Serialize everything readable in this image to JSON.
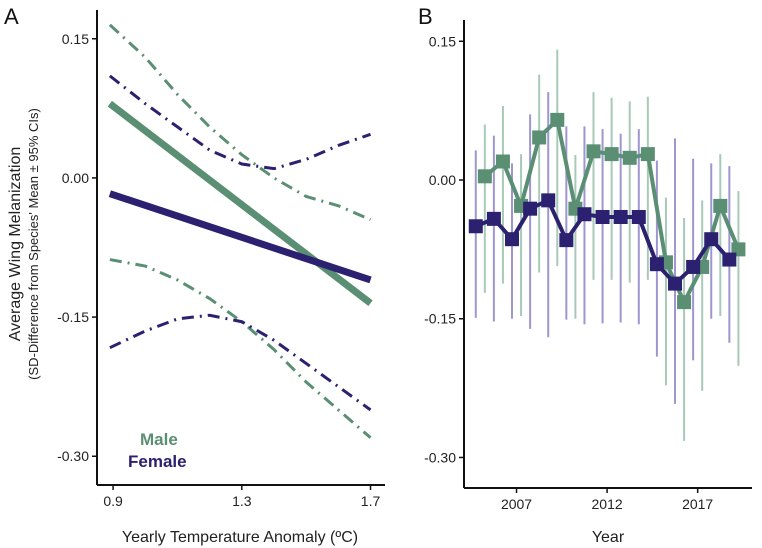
{
  "colors": {
    "male": "#5b8f74",
    "female": "#2b2170",
    "male_ci": "#a9c9b8",
    "female_ci": "#9d96cf"
  },
  "chart_data": [
    {
      "type": "line",
      "panel_label": "A",
      "ylabel": "Average Wing Melanization",
      "ylabel_sub": "(SD-Difference from Species' Mean ± 95% CIs)",
      "xlabel": "Yearly Temperature Anomaly (ºC)",
      "xlim": [
        0.85,
        1.745
      ],
      "ylim": [
        -0.331,
        0.181
      ],
      "xticks": [
        0.9,
        1.3,
        1.7
      ],
      "xtick_labels": [
        "0.9",
        "1.3",
        "1.7"
      ],
      "yticks": [
        0.15,
        0,
        -0.15,
        -0.3
      ],
      "ytick_labels": [
        "0.15",
        "0.00",
        "-0.15",
        "-0.30"
      ],
      "legend": {
        "placement": "bottom-left",
        "entries": [
          "Male",
          "Female"
        ]
      },
      "series": [
        {
          "name": "Male",
          "fit": {
            "x": [
              0.89,
              1.7
            ],
            "y": [
              0.08,
              -0.135
            ]
          },
          "ci_x": [
            0.89,
            1.0,
            1.1,
            1.2,
            1.3,
            1.4,
            1.5,
            1.6,
            1.7
          ],
          "ci_upper": [
            0.165,
            0.13,
            0.09,
            0.055,
            0.025,
            0.0,
            -0.02,
            -0.03,
            -0.045
          ],
          "ci_lower": [
            -0.088,
            -0.095,
            -0.11,
            -0.13,
            -0.155,
            -0.185,
            -0.22,
            -0.25,
            -0.28
          ]
        },
        {
          "name": "Female",
          "fit": {
            "x": [
              0.89,
              1.7
            ],
            "y": [
              -0.017,
              -0.11
            ]
          },
          "ci_x": [
            0.89,
            1.0,
            1.1,
            1.2,
            1.3,
            1.4,
            1.5,
            1.6,
            1.7
          ],
          "ci_upper": [
            0.11,
            0.08,
            0.055,
            0.03,
            0.015,
            0.01,
            0.02,
            0.035,
            0.047
          ],
          "ci_lower": [
            -0.183,
            -0.165,
            -0.152,
            -0.148,
            -0.155,
            -0.175,
            -0.2,
            -0.225,
            -0.25
          ]
        }
      ]
    },
    {
      "type": "line",
      "panel_label": "B",
      "xlabel": "Year",
      "xlim": [
        2004.1,
        2020.0
      ],
      "ylim": [
        -0.333,
        0.173
      ],
      "xticks": [
        2007,
        2012,
        2017
      ],
      "xtick_labels": [
        "2007",
        "2012",
        "2017"
      ],
      "yticks": [
        0.15,
        0,
        -0.15,
        -0.3
      ],
      "ytick_labels": [
        "0.15",
        "0.00",
        "-0.15",
        "-0.30"
      ],
      "x": [
        2005,
        2006,
        2007,
        2008,
        2009,
        2010,
        2011,
        2012,
        2013,
        2014,
        2015,
        2016,
        2017,
        2018,
        2019
      ],
      "series": [
        {
          "name": "Female",
          "dodge": -0.25,
          "values": [
            -0.05,
            -0.042,
            -0.064,
            -0.031,
            -0.022,
            -0.065,
            -0.037,
            -0.04,
            -0.04,
            -0.04,
            -0.091,
            -0.112,
            -0.094,
            -0.064,
            -0.086
          ],
          "ci_upper": [
            0.032,
            0.048,
            0.018,
            0.071,
            0.095,
            0.058,
            0.058,
            0.055,
            0.05,
            0.055,
            0.021,
            0.045,
            0.023,
            0.018,
            0.015
          ],
          "ci_lower": [
            -0.149,
            -0.153,
            -0.15,
            -0.161,
            -0.17,
            -0.151,
            -0.156,
            -0.155,
            -0.154,
            -0.156,
            -0.191,
            -0.242,
            -0.195,
            -0.15,
            -0.176
          ]
        },
        {
          "name": "Male",
          "dodge": 0.25,
          "values": [
            0.004,
            0.02,
            -0.028,
            0.046,
            0.065,
            -0.031,
            0.031,
            0.028,
            0.024,
            0.028,
            -0.089,
            -0.132,
            -0.094,
            -0.028,
            -0.075
          ],
          "ci_upper": [
            0.06,
            0.08,
            0.028,
            0.114,
            0.141,
            0.027,
            0.095,
            0.089,
            0.085,
            0.09,
            -0.019,
            -0.041,
            -0.022,
            0.028,
            -0.012
          ],
          "ci_lower": [
            -0.122,
            -0.112,
            -0.147,
            -0.1,
            -0.093,
            -0.15,
            -0.108,
            -0.108,
            -0.111,
            -0.108,
            -0.222,
            -0.282,
            -0.228,
            -0.147,
            -0.201
          ]
        }
      ]
    }
  ]
}
